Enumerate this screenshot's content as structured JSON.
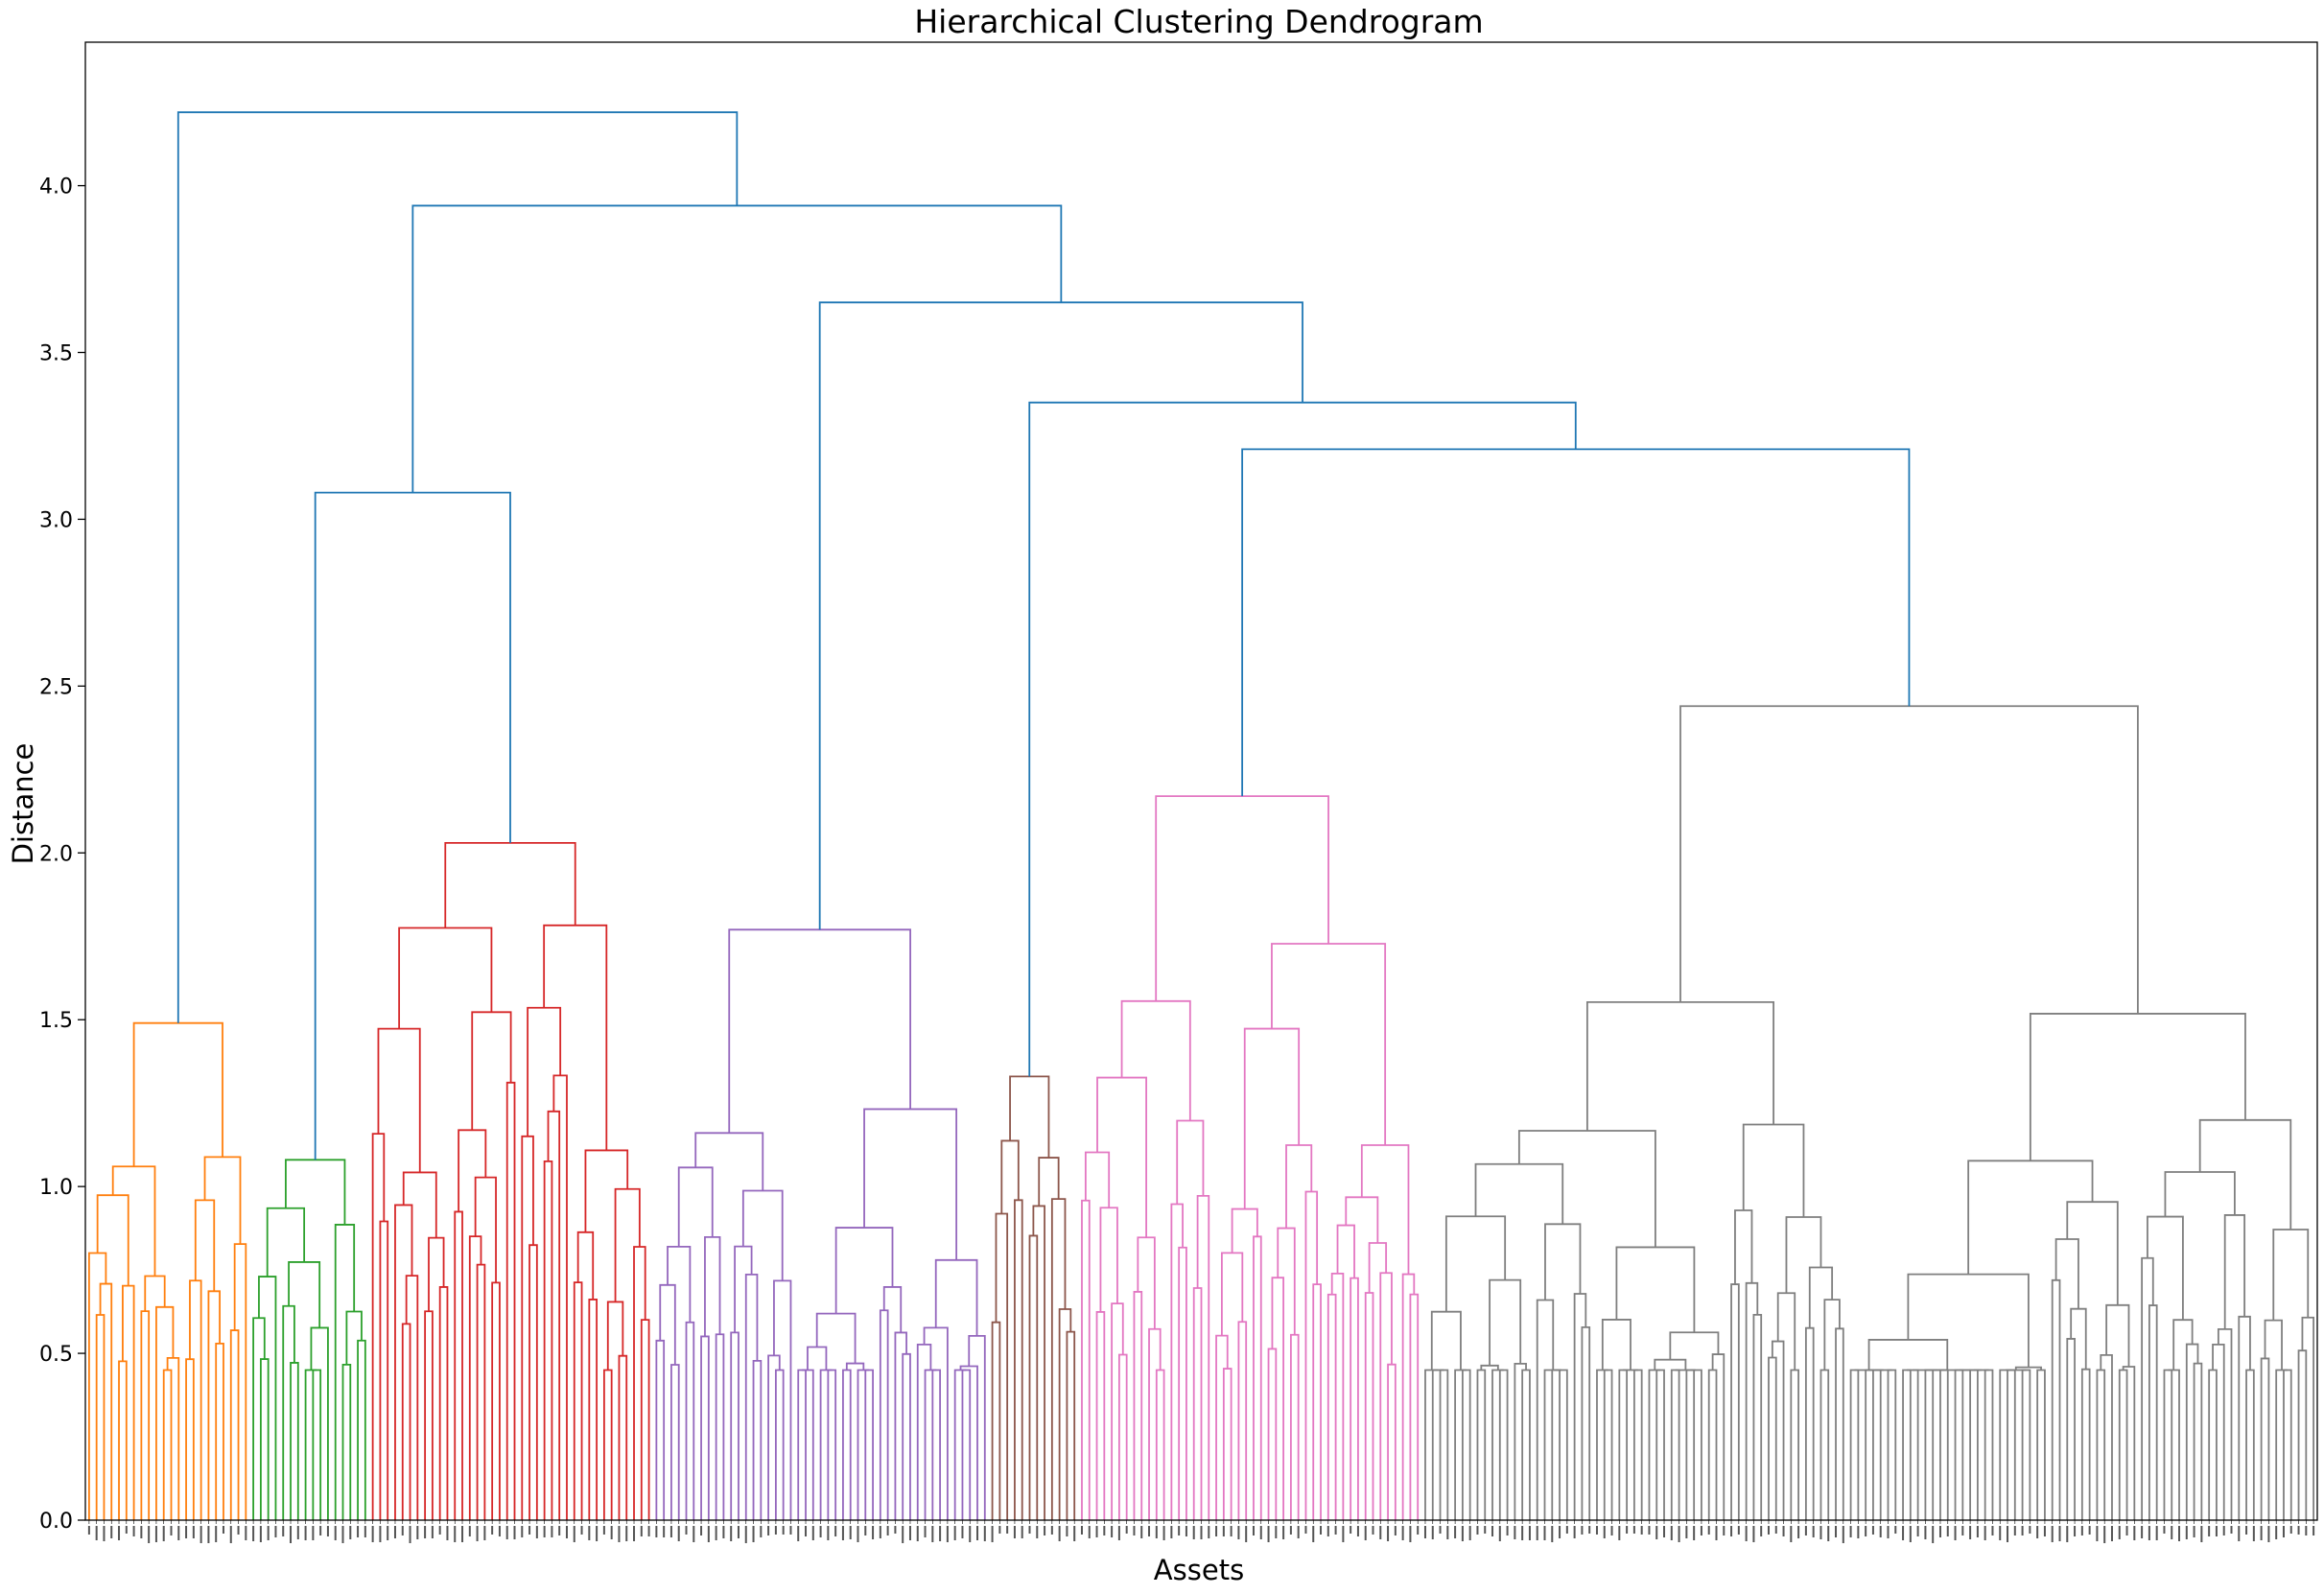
{
  "chart_data": {
    "type": "dendrogram",
    "title": "Hierarchical Clustering Dendrogram",
    "xlabel": "Assets",
    "ylabel": "Distance",
    "ylim": [
      0,
      4.43
    ],
    "yticks": [
      0.0,
      0.5,
      1.0,
      1.5,
      2.0,
      2.5,
      3.0,
      3.5,
      4.0
    ],
    "grid": false,
    "link_color": "#1f77b4",
    "root_merge_height": 4.22,
    "clusters": [
      {
        "color": "#ff7f0e",
        "leaf_count": 22,
        "merge_height": 1.49
      },
      {
        "color": "#2ca02c",
        "leaf_count": 16,
        "merge_height": 1.08
      },
      {
        "color": "#d62728",
        "leaf_count": 38,
        "merge_height": 2.03
      },
      {
        "color": "#9467bd",
        "leaf_count": 45,
        "merge_height": 1.77
      },
      {
        "color": "#8c564b",
        "leaf_count": 12,
        "merge_height": 1.33
      },
      {
        "color": "#e377c2",
        "leaf_count": 46,
        "merge_height": 2.17
      },
      {
        "color": "#7f7f7f",
        "leaf_count": 120,
        "merge_height": 2.44
      }
    ],
    "top_merges": [
      {
        "left": "orange",
        "right": "rest",
        "height": 4.22
      },
      {
        "left": "green+red",
        "right": "purple..gray",
        "height": 3.94
      },
      {
        "left": "green",
        "right": "red",
        "height": 3.08
      },
      {
        "left": "purple",
        "right": "brown..gray",
        "height": 3.65
      },
      {
        "left": "brown",
        "right": "pink+gray",
        "height": 3.35
      },
      {
        "left": "pink",
        "right": "gray",
        "height": 3.21
      }
    ]
  }
}
